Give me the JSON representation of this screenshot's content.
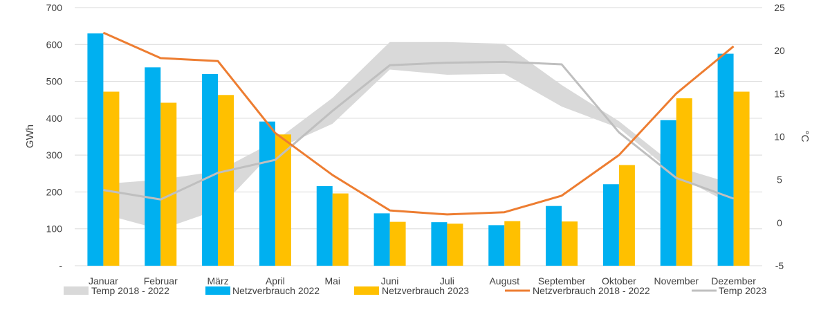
{
  "chart_data": {
    "type": "bar",
    "categories": [
      "Januar",
      "Februar",
      "März",
      "April",
      "Mai",
      "Juni",
      "Juli",
      "August",
      "September",
      "Oktober",
      "November",
      "Dezember"
    ],
    "ylabel": "GWh",
    "y2label": "°C",
    "ylim": [
      0,
      700
    ],
    "y2lim": [
      -5,
      25
    ],
    "y_ticks": [
      "-",
      "100",
      "200",
      "300",
      "400",
      "500",
      "600",
      "700"
    ],
    "y2_ticks": [
      "-5",
      "0",
      "5",
      "10",
      "15",
      "20",
      "25"
    ],
    "grid": true,
    "legend_position": "bottom",
    "series": [
      {
        "name": "Temp 2018 - 2022",
        "kind": "band",
        "axis": "right",
        "color": "#d9d9d9",
        "low": [
          1.0,
          -0.8,
          1.5,
          8.5,
          11.5,
          17.8,
          17.2,
          17.3,
          13.5,
          11.0,
          5.5,
          2.0
        ],
        "high": [
          4.5,
          5.0,
          6.0,
          9.5,
          14.5,
          21.0,
          21.0,
          20.8,
          16.0,
          11.8,
          6.5,
          4.5
        ]
      },
      {
        "name": "Netzverbrauch 2022",
        "kind": "bar",
        "axis": "left",
        "color": "#00b0f0",
        "values": [
          630,
          538,
          520,
          391,
          216,
          142,
          118,
          110,
          162,
          221,
          395,
          575
        ]
      },
      {
        "name": "Netzverbrauch 2023",
        "kind": "bar",
        "axis": "left",
        "color": "#ffc000",
        "values": [
          472,
          442,
          463,
          356,
          196,
          119,
          114,
          121,
          120,
          273,
          454,
          472
        ]
      },
      {
        "name": "Netzverbrauch 2018 - 2022",
        "kind": "line",
        "axis": "left",
        "color": "#ed7d31",
        "values": [
          632,
          563,
          555,
          360,
          246,
          150,
          139,
          145,
          190,
          300,
          467,
          595
        ]
      },
      {
        "name": "Temp 2023",
        "kind": "line",
        "axis": "right",
        "color": "#bfbfbf",
        "values": [
          3.8,
          2.7,
          5.8,
          7.3,
          13.0,
          18.3,
          18.6,
          18.7,
          18.4,
          10.5,
          5.2,
          2.8
        ]
      }
    ]
  },
  "colors": {
    "grid": "#d9d9d9",
    "axis_text": "#404040"
  }
}
